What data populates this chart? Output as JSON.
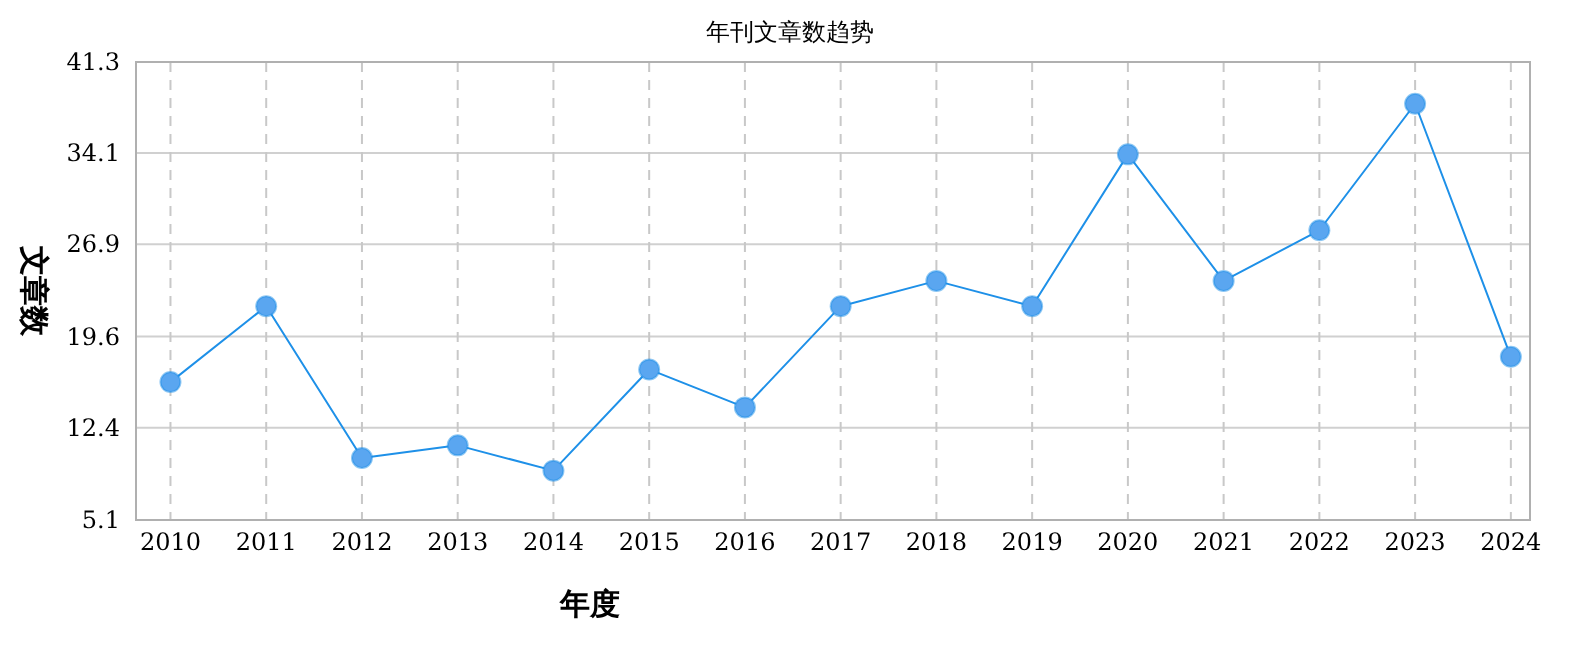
{
  "chart_data": {
    "type": "line",
    "title": "年刊文章数趋势",
    "xlabel": "年度",
    "ylabel": "文章数",
    "x": [
      2010,
      2011,
      2012,
      2013,
      2014,
      2015,
      2016,
      2017,
      2018,
      2019,
      2020,
      2021,
      2022,
      2023,
      2024
    ],
    "series": [
      {
        "color": "#1e90e8",
        "values": [
          16,
          22,
          10,
          11,
          9,
          17,
          14,
          22,
          24,
          22,
          34,
          24,
          28,
          38,
          18
        ]
      }
    ],
    "xlim": [
      2009.64,
      2024.2
    ],
    "xticks": [
      2010,
      2011,
      2012,
      2013,
      2014,
      2015,
      2016,
      2017,
      2018,
      2019,
      2020,
      2021,
      2022,
      2023,
      2024
    ],
    "ylim": [
      5.1,
      41.3
    ],
    "yticks": [
      5.1,
      12.4,
      19.6,
      26.9,
      34.1,
      41.3
    ],
    "grid": true,
    "marker": "circle"
  }
}
